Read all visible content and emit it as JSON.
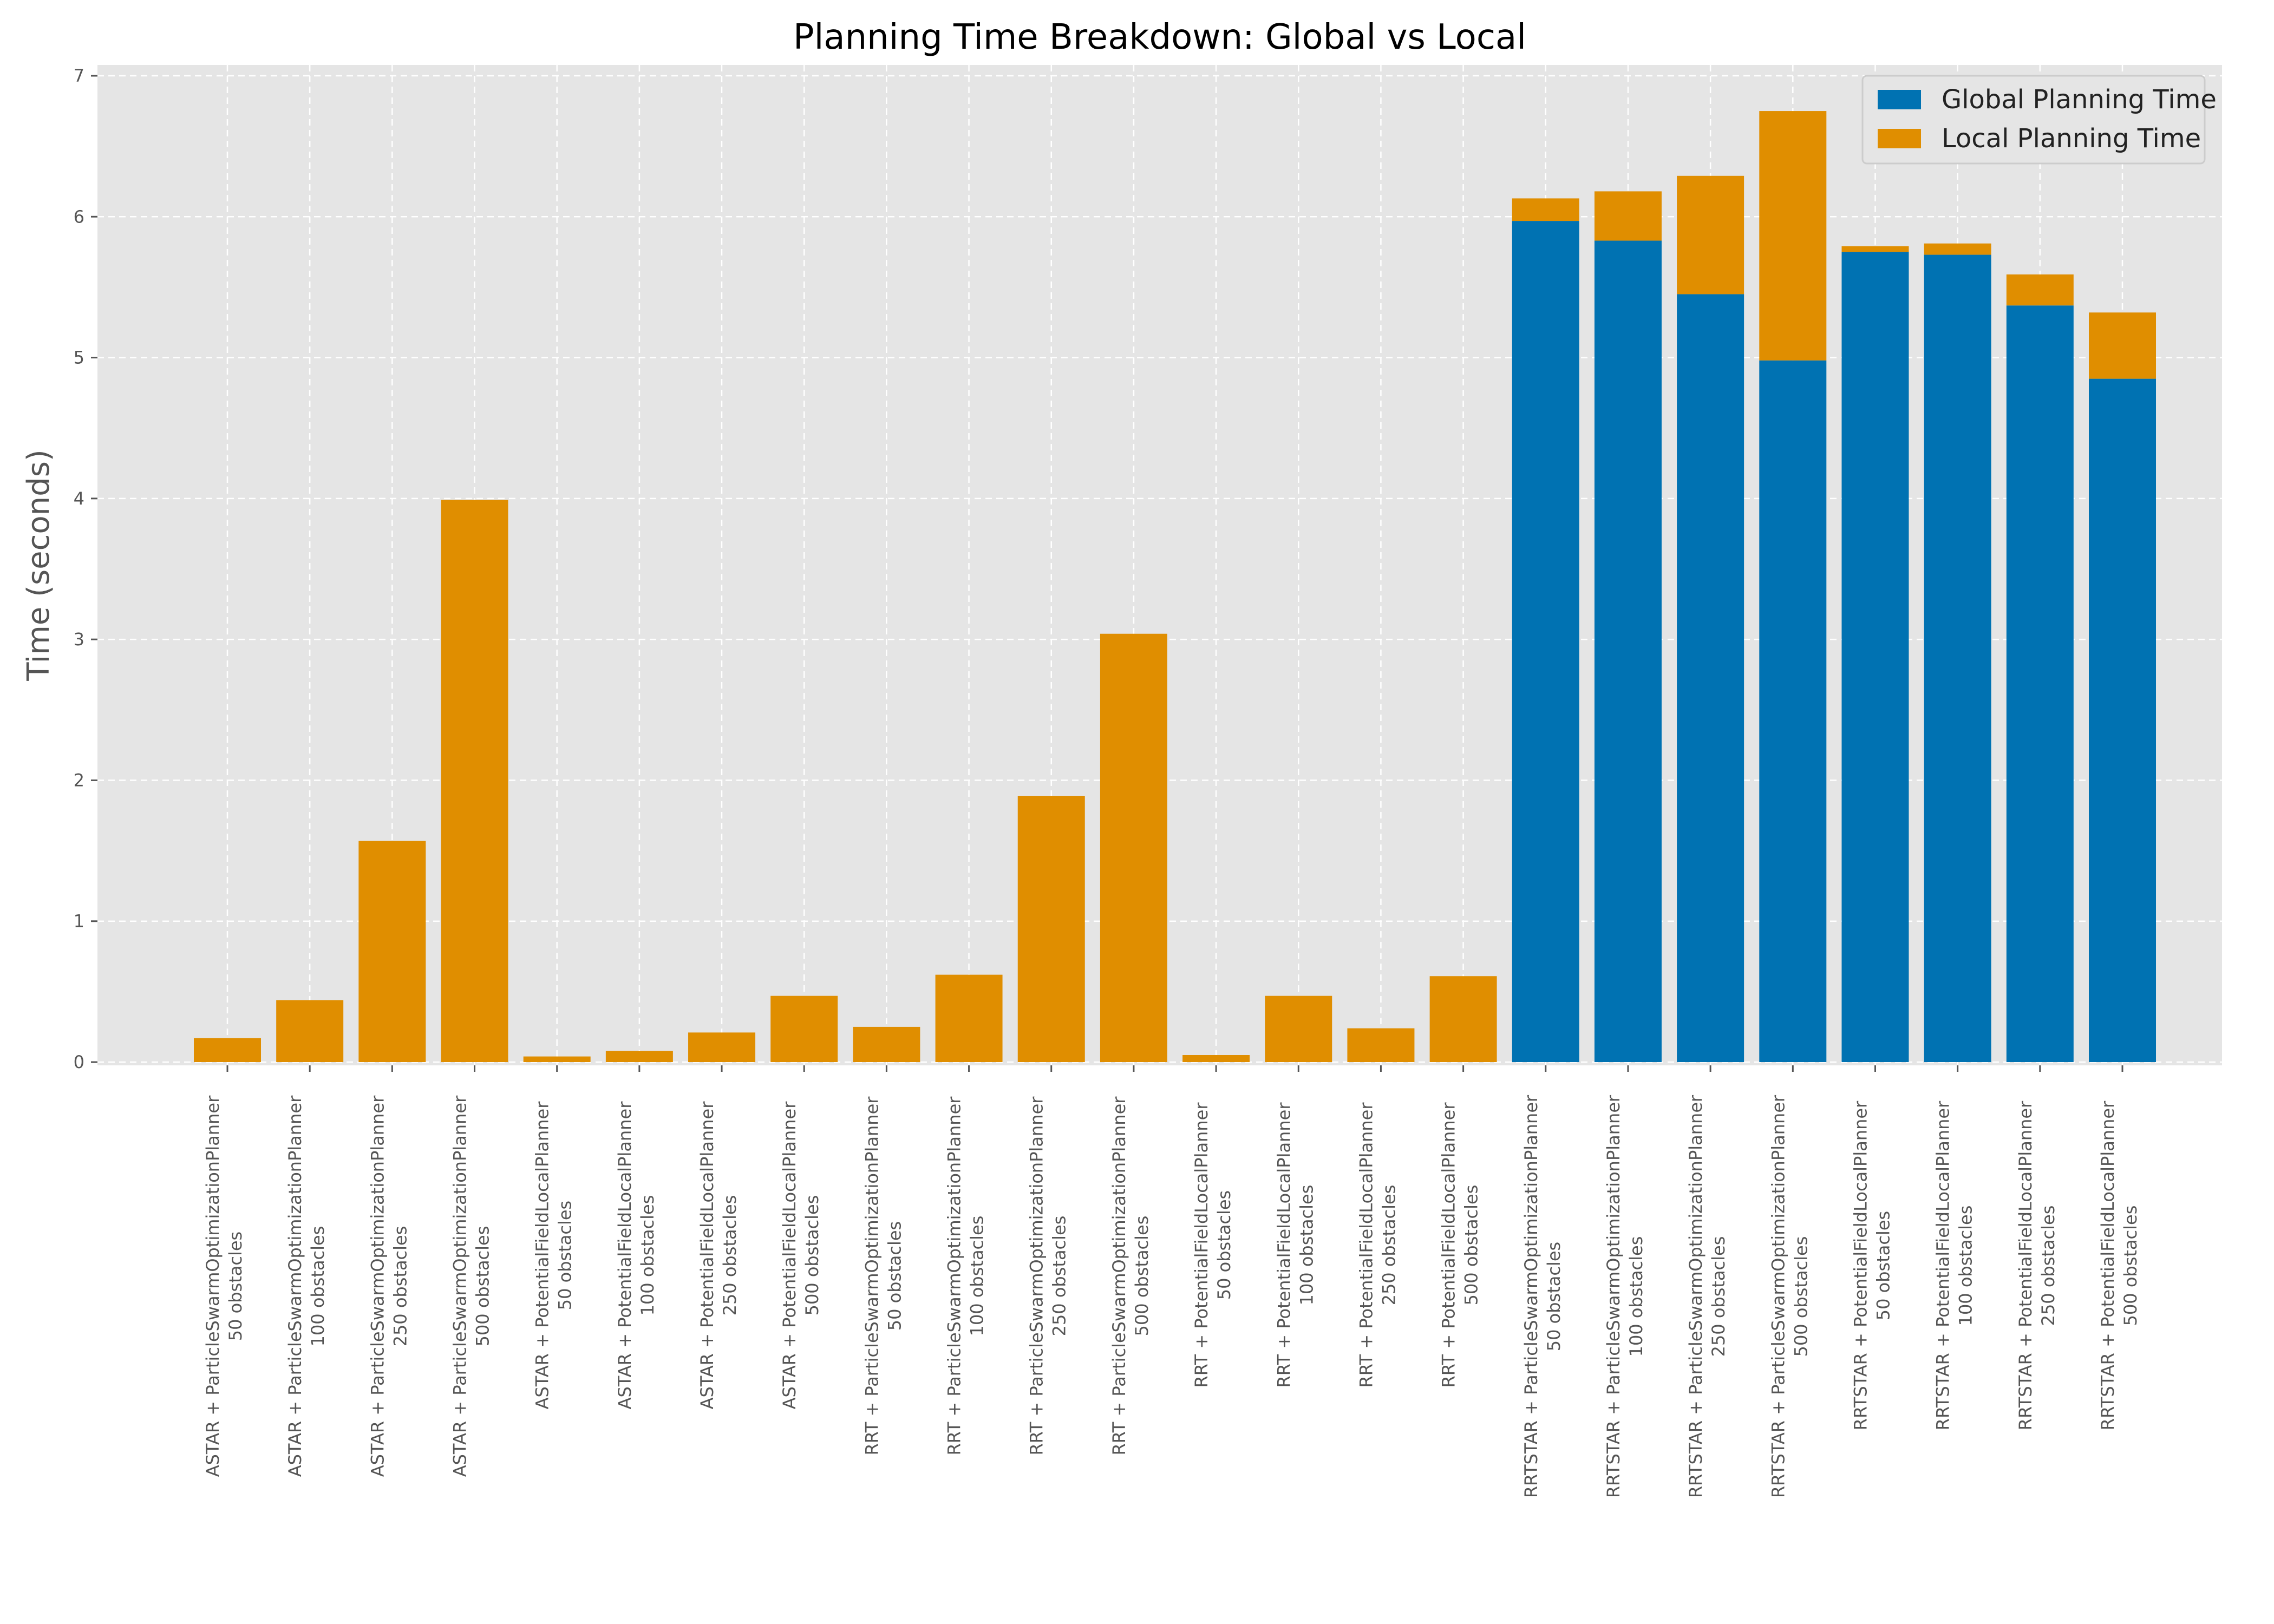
{
  "chart_data": {
    "type": "bar",
    "stacked": true,
    "title": "Planning Time Breakdown: Global vs Local",
    "ylabel": "Time (seconds)",
    "xlabel": "",
    "ylim": [
      0,
      7
    ],
    "yticks": [
      "0",
      "1",
      "2",
      "3",
      "4",
      "5",
      "6",
      "7"
    ],
    "grid": true,
    "legend_position": "top-right",
    "colors": {
      "global": "#0072b2",
      "local": "#e08e00",
      "plot_bg": "#e5e5e5",
      "grid": "#ffffff"
    },
    "categories": [
      [
        "ASTAR + ParticleSwarmOptimizationPlanner",
        "50 obstacles"
      ],
      [
        "ASTAR + ParticleSwarmOptimizationPlanner",
        "100 obstacles"
      ],
      [
        "ASTAR + ParticleSwarmOptimizationPlanner",
        "250 obstacles"
      ],
      [
        "ASTAR + ParticleSwarmOptimizationPlanner",
        "500 obstacles"
      ],
      [
        "ASTAR + PotentialFieldLocalPlanner",
        "50 obstacles"
      ],
      [
        "ASTAR + PotentialFieldLocalPlanner",
        "100 obstacles"
      ],
      [
        "ASTAR + PotentialFieldLocalPlanner",
        "250 obstacles"
      ],
      [
        "ASTAR + PotentialFieldLocalPlanner",
        "500 obstacles"
      ],
      [
        "RRT + ParticleSwarmOptimizationPlanner",
        "50 obstacles"
      ],
      [
        "RRT + ParticleSwarmOptimizationPlanner",
        "100 obstacles"
      ],
      [
        "RRT + ParticleSwarmOptimizationPlanner",
        "250 obstacles"
      ],
      [
        "RRT + ParticleSwarmOptimizationPlanner",
        "500 obstacles"
      ],
      [
        "RRT + PotentialFieldLocalPlanner",
        "50 obstacles"
      ],
      [
        "RRT + PotentialFieldLocalPlanner",
        "100 obstacles"
      ],
      [
        "RRT + PotentialFieldLocalPlanner",
        "250 obstacles"
      ],
      [
        "RRT + PotentialFieldLocalPlanner",
        "500 obstacles"
      ],
      [
        "RRTSTAR + ParticleSwarmOptimizationPlanner",
        "50 obstacles"
      ],
      [
        "RRTSTAR + ParticleSwarmOptimizationPlanner",
        "100 obstacles"
      ],
      [
        "RRTSTAR + ParticleSwarmOptimizationPlanner",
        "250 obstacles"
      ],
      [
        "RRTSTAR + ParticleSwarmOptimizationPlanner",
        "500 obstacles"
      ],
      [
        "RRTSTAR + PotentialFieldLocalPlanner",
        "50 obstacles"
      ],
      [
        "RRTSTAR + PotentialFieldLocalPlanner",
        "100 obstacles"
      ],
      [
        "RRTSTAR + PotentialFieldLocalPlanner",
        "250 obstacles"
      ],
      [
        "RRTSTAR + PotentialFieldLocalPlanner",
        "500 obstacles"
      ]
    ],
    "series": [
      {
        "name": "Global Planning Time",
        "values": [
          0,
          0,
          0,
          0,
          0,
          0,
          0,
          0,
          0,
          0,
          0,
          0,
          0,
          0,
          0,
          0,
          5.97,
          5.83,
          5.45,
          4.98,
          5.75,
          5.73,
          5.37,
          4.85
        ]
      },
      {
        "name": "Local Planning Time",
        "values": [
          0.17,
          0.44,
          1.57,
          3.99,
          0.04,
          0.08,
          0.21,
          0.47,
          0.25,
          0.62,
          1.89,
          3.04,
          0.05,
          0.47,
          0.24,
          0.61,
          0.16,
          0.35,
          0.84,
          1.77,
          0.04,
          0.08,
          0.22,
          0.47
        ]
      }
    ]
  }
}
